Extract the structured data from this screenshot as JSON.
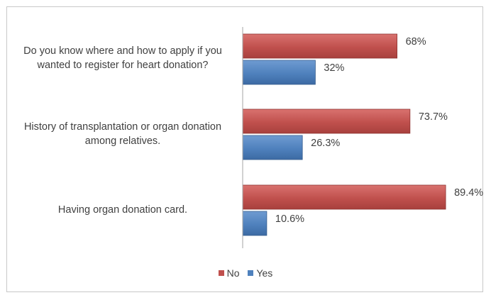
{
  "chart_data": {
    "type": "bar",
    "orientation": "horizontal",
    "title": "",
    "xlabel": "",
    "ylabel": "",
    "xlim": [
      0,
      100
    ],
    "grid": false,
    "legend_position": "bottom",
    "categories": [
      "Do you know where and how to apply if you wanted to register for heart donation?",
      "History of transplantation or organ donation among relatives.",
      "Having organ donation card."
    ],
    "category_lines": [
      [
        "Do you know where and how to apply if you",
        "wanted to register for heart donation?"
      ],
      [
        "History of transplantation or organ donation",
        "among relatives."
      ],
      [
        "Having organ donation card."
      ]
    ],
    "series": [
      {
        "name": "No",
        "color": "#c0504d",
        "values": [
          68,
          73.7,
          89.4
        ],
        "labels": [
          "68%",
          "73.7%",
          "89.4%"
        ]
      },
      {
        "name": "Yes",
        "color": "#4f81bd",
        "values": [
          32,
          26.3,
          10.6
        ],
        "labels": [
          "32%",
          "26.3%",
          "10.6%"
        ]
      }
    ]
  }
}
